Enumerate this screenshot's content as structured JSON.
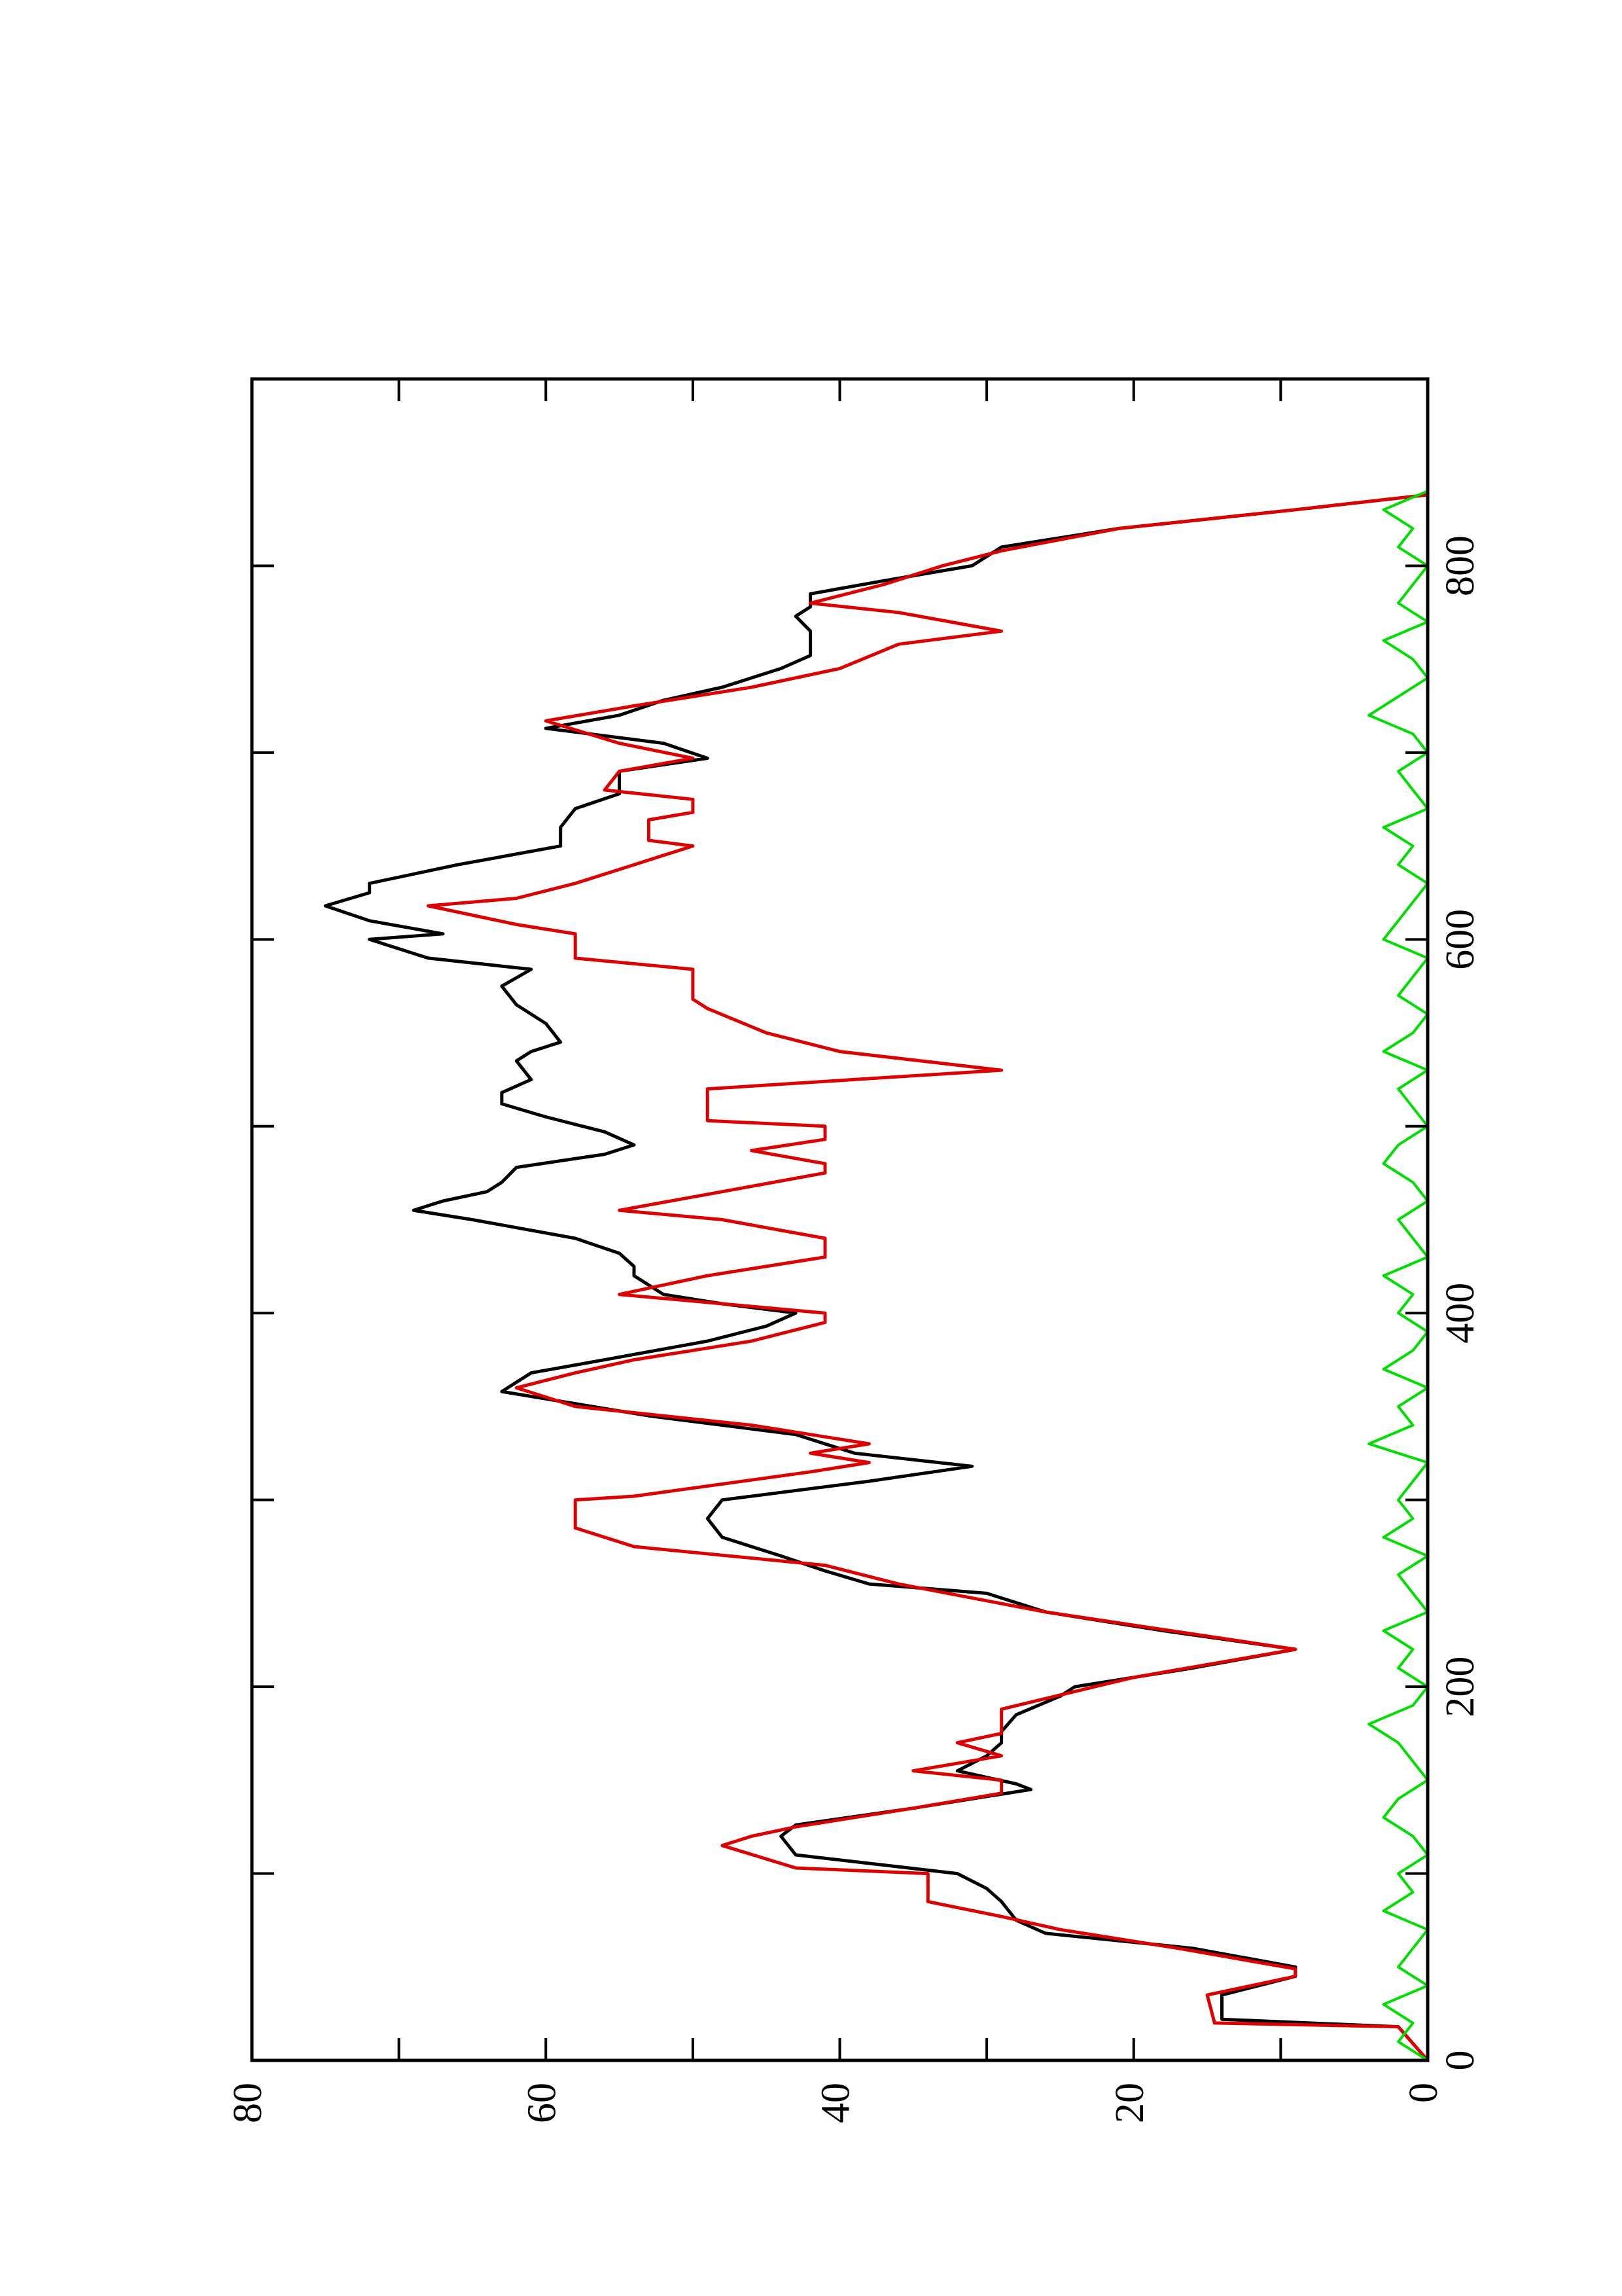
{
  "chart_data": {
    "type": "line",
    "xlim": [
      0,
      900
    ],
    "xticks": [
      0,
      200,
      400,
      600,
      800
    ],
    "xminor": [
      100,
      300,
      500,
      700
    ],
    "ylim": [
      0,
      80
    ],
    "yticks": [
      0,
      20,
      40,
      60,
      80
    ],
    "yminor": [
      10,
      30,
      50,
      70
    ],
    "series": [
      {
        "color": "#000000",
        "x": [
          0,
          18,
          22,
          35,
          45,
          50,
          60,
          68,
          75,
          85,
          92,
          100,
          110,
          120,
          126,
          135,
          145,
          148,
          155,
          163,
          170,
          176,
          185,
          195,
          200,
          210,
          220,
          230,
          240,
          250,
          255,
          262,
          270,
          280,
          290,
          300,
          310,
          318,
          325,
          335,
          345,
          358,
          368,
          375,
          385,
          393,
          400,
          405,
          410,
          420,
          425,
          432,
          440,
          450,
          455,
          460,
          465,
          470,
          478,
          485,
          490,
          497,
          505,
          512,
          518,
          525,
          535,
          540,
          545,
          555,
          565,
          575,
          584,
          590,
          600,
          603,
          610,
          618,
          625,
          630,
          640,
          650,
          660,
          670,
          678,
          690,
          697,
          705,
          713,
          720,
          728,
          735,
          745,
          752,
          758,
          765,
          773,
          778,
          785,
          792,
          800,
          810,
          820,
          830,
          838
        ],
        "values": [
          0,
          2,
          14,
          14,
          9,
          9,
          16,
          26,
          28,
          29,
          30,
          32,
          43,
          44,
          43,
          35,
          27,
          28,
          32,
          30,
          29,
          29,
          28,
          25,
          24,
          16,
          9,
          18,
          26,
          30,
          38,
          41,
          44,
          48,
          49,
          48,
          38,
          31,
          39,
          43,
          53,
          63,
          61,
          56,
          49,
          45,
          43,
          48,
          52,
          54,
          54,
          55,
          58,
          65,
          69,
          67,
          64,
          63,
          62,
          56,
          54,
          56,
          60,
          63,
          63,
          61,
          62,
          61,
          59,
          60,
          62,
          63,
          61,
          68,
          72,
          67,
          72,
          75,
          72,
          72,
          66,
          59,
          59,
          58,
          55,
          55,
          49,
          52,
          60,
          55,
          52,
          48,
          44,
          42,
          42,
          42,
          43,
          42,
          42,
          37,
          31,
          29,
          21,
          9,
          0
        ]
      },
      {
        "color": "#dd0000",
        "x": [
          0,
          18,
          20,
          35,
          45,
          49,
          60,
          70,
          77,
          85,
          100,
          103,
          115,
          120,
          125,
          135,
          143,
          150,
          155,
          163,
          170,
          175,
          188,
          205,
          220,
          240,
          255,
          265,
          275,
          285,
          300,
          302,
          315,
          320,
          325,
          330,
          340,
          350,
          360,
          368,
          375,
          385,
          395,
          400,
          410,
          420,
          430,
          440,
          450,
          455,
          465,
          475,
          480,
          487,
          493,
          500,
          503,
          520,
          530,
          540,
          550,
          563,
          568,
          584,
          590,
          603,
          608,
          618,
          622,
          630,
          640,
          650,
          653,
          664,
          668,
          675,
          680,
          690,
          697,
          705,
          717,
          725,
          735,
          745,
          758,
          765,
          775,
          780,
          790,
          800,
          808,
          820,
          830,
          838
        ],
        "values": [
          0,
          2,
          14.5,
          15,
          9,
          9,
          17,
          25,
          29,
          34,
          34,
          43,
          48,
          46,
          43,
          35,
          29,
          29,
          35,
          29,
          32,
          29,
          29,
          20,
          9,
          26,
          36,
          41,
          54,
          58,
          58,
          54,
          42,
          38,
          42,
          38,
          46,
          58,
          62,
          58,
          54,
          46,
          41,
          41,
          55,
          49,
          41,
          41,
          48,
          55,
          48,
          41,
          41,
          46,
          41,
          41,
          49,
          49,
          29,
          40,
          45,
          49,
          50,
          50,
          58,
          58,
          62,
          68,
          62,
          58,
          54,
          50,
          53,
          53,
          50,
          50,
          56,
          55,
          50,
          55,
          60,
          54,
          46,
          40,
          36,
          29,
          36,
          42,
          37,
          33,
          29,
          21,
          9,
          0
        ]
      },
      {
        "color": "#00dd00",
        "x": [
          0,
          10,
          20,
          30,
          40,
          50,
          60,
          70,
          80,
          90,
          100,
          110,
          120,
          130,
          140,
          150,
          160,
          170,
          180,
          190,
          200,
          210,
          220,
          230,
          240,
          250,
          260,
          270,
          280,
          290,
          300,
          310,
          320,
          330,
          340,
          350,
          360,
          370,
          380,
          390,
          400,
          410,
          420,
          430,
          440,
          450,
          460,
          470,
          480,
          490,
          500,
          510,
          520,
          530,
          540,
          550,
          560,
          570,
          580,
          590,
          600,
          610,
          620,
          630,
          640,
          650,
          660,
          670,
          680,
          690,
          700,
          710,
          720,
          730,
          740,
          750,
          760,
          770,
          780,
          790,
          800,
          810,
          820,
          830,
          840
        ],
        "values": [
          0,
          2,
          1,
          3,
          0,
          2,
          1,
          0,
          3,
          1,
          2,
          0,
          1,
          3,
          2,
          0,
          1,
          2,
          4,
          1,
          0,
          2,
          1,
          3,
          0,
          1,
          2,
          0,
          3,
          1,
          2,
          1,
          0,
          4,
          1,
          2,
          0,
          3,
          1,
          0,
          2,
          1,
          3,
          0,
          1,
          2,
          0,
          1,
          3,
          2,
          0,
          1,
          2,
          0,
          3,
          1,
          0,
          2,
          1,
          0,
          3,
          2,
          1,
          0,
          2,
          1,
          3,
          0,
          1,
          2,
          0,
          1,
          4,
          2,
          0,
          1,
          3,
          0,
          2,
          1,
          0,
          2,
          1,
          3,
          0
        ]
      }
    ]
  }
}
